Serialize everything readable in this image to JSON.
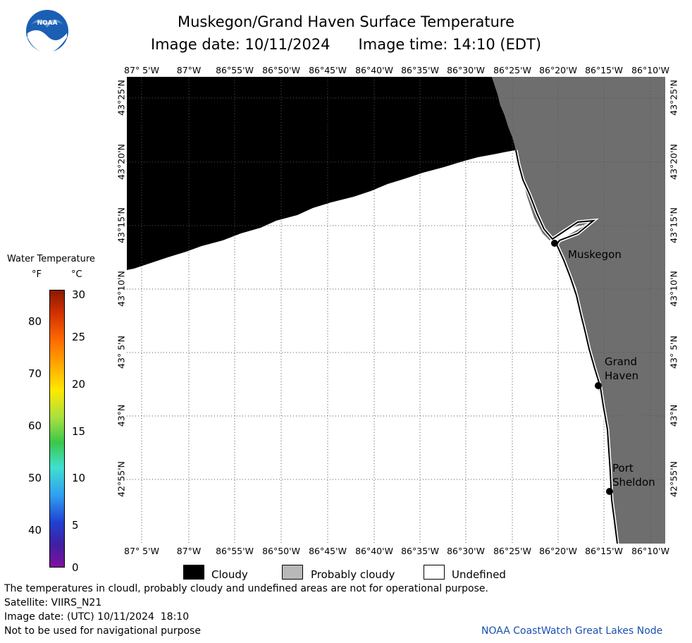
{
  "header": {
    "title": "Muskegon/Grand Haven Surface Temperature",
    "image_date_label": "Image date: 10/11/2024",
    "image_time_label": "Image time: 14:10 (EDT)"
  },
  "logo": {
    "text": "NOAA"
  },
  "map": {
    "lon_ticks": [
      "87° 5'W",
      "87°W",
      "86°55'W",
      "86°50'W",
      "86°45'W",
      "86°40'W",
      "86°35'W",
      "86°30'W",
      "86°25'W",
      "86°20'W",
      "86°15'W",
      "86°10'W"
    ],
    "lat_ticks": [
      "43°25'N",
      "43°20'N",
      "43°15'N",
      "43°10'N",
      "43° 5'N",
      "43°N",
      "42°55'N"
    ],
    "cities": [
      {
        "name": "Muskegon"
      },
      {
        "name": "Grand\nHaven"
      },
      {
        "name": "Port\nSheldon"
      }
    ],
    "colors": {
      "cloudy": "#000000",
      "probably_cloudy": "#6e6e6e",
      "undefined": "#ffffff"
    }
  },
  "colorbar": {
    "title": "Water Temperature",
    "unit_f": "°F",
    "unit_c": "°C",
    "f_ticks": [
      "80",
      "70",
      "60",
      "50",
      "40"
    ],
    "c_ticks": [
      "30",
      "25",
      "20",
      "15",
      "10",
      "5",
      "0"
    ]
  },
  "legend": {
    "cloudy": "Cloudy",
    "probably_cloudy": "Probably cloudy",
    "undefined": "Undefined"
  },
  "footer": {
    "disclaimer": "The temperatures in cloudl, probably cloudy and undefined areas are not for operational purpose.",
    "satellite": "Satellite: VIIRS_N21",
    "utc_date": "Image date: (UTC) 10/11/2024  18:10",
    "nav": "Not to be used for navigational purpose",
    "credit": "NOAA CoastWatch Great Lakes Node"
  }
}
